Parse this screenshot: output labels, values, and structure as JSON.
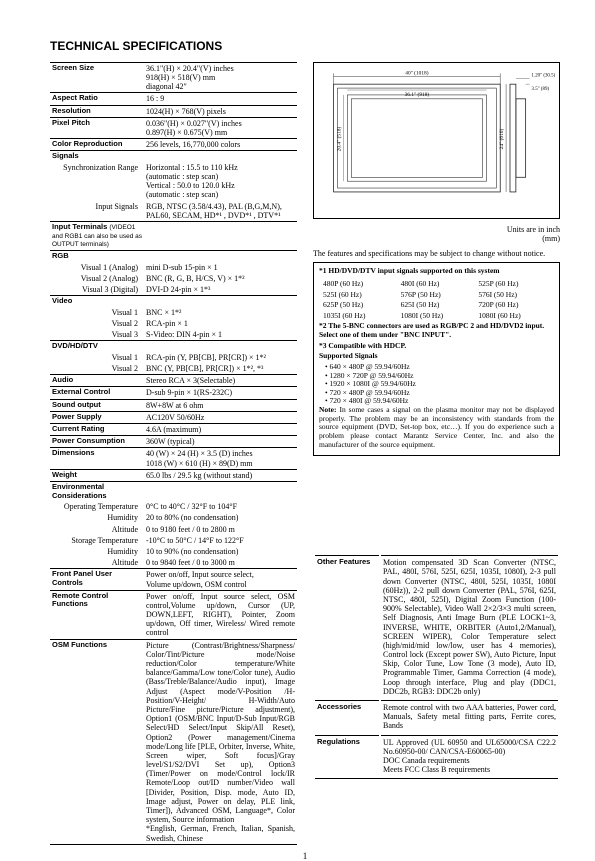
{
  "title": "TECHNICAL SPECIFICATIONS",
  "page_number": "1",
  "diagram_caption": "Units are in inch\n(mm)",
  "diagram": {
    "outer_w_label": "40\" (1018)",
    "outer_h_label": "24\" (610)",
    "screen_w_label": "36.1\" (918)",
    "screen_h_label": "20.4\" (518)",
    "depth_top_label": "1.20\" (30.5)",
    "depth_main_label": "3.5\" (89)"
  },
  "spec_rows": [
    {
      "type": "head",
      "label": "Screen Size",
      "value": "36.1\"(H) × 20.4\"(V) inches\n918(H) × 518(V) mm\ndiagonal 42\""
    },
    {
      "type": "head",
      "label": "Aspect Ratio",
      "value": "16 : 9"
    },
    {
      "type": "head",
      "label": "Resolution",
      "value": "1024(H) × 768(V) pixels"
    },
    {
      "type": "head",
      "label": "Pixel Pitch",
      "value": "0.036\"(H) × 0.027\"(V) inches\n0.897(H) × 0.675(V) mm"
    },
    {
      "type": "head",
      "label": "Color Reproduction",
      "value": "256 levels, 16,770,000 colors"
    },
    {
      "type": "head",
      "label": "Signals",
      "value": ""
    },
    {
      "type": "sub",
      "label": "Synchronization Range",
      "value": "Horizontal : 15.5 to 110 kHz\n(automatic : step scan)\nVertical : 50.0 to 120.0 kHz\n(automatic : step scan)"
    },
    {
      "type": "sub",
      "label": "Input Signals",
      "value": "RGB, NTSC (3.58/4.43), PAL (B,G,M,N),\nPAL60, SECAM, HD*¹ , DVD*¹ , DTV*¹"
    },
    {
      "type": "head",
      "label": "Input Terminals",
      "note": "(VIDEO1 and RGB1 can also be used as OUTPUT terminals)",
      "value": ""
    },
    {
      "type": "subhead",
      "label": "RGB",
      "value": ""
    },
    {
      "type": "sub",
      "label": "Visual 1 (Analog)",
      "value": "mini D-sub 15-pin × 1"
    },
    {
      "type": "sub",
      "label": "Visual 2 (Analog)",
      "value": "BNC (R, G, B, H/CS, V) × 1*²"
    },
    {
      "type": "sub",
      "label": "Visual 3 (Digital)",
      "value": "DVI-D 24-pin × 1*³"
    },
    {
      "type": "subhead",
      "label": "Video",
      "value": ""
    },
    {
      "type": "sub",
      "label": "Visual 1",
      "value": "BNC × 1*²"
    },
    {
      "type": "sub",
      "label": "Visual 2",
      "value": "RCA-pin × 1"
    },
    {
      "type": "sub",
      "label": "Visual 3",
      "value": "S-Video: DIN 4-pin × 1"
    },
    {
      "type": "subhead",
      "label": "DVD/HD/DTV",
      "value": ""
    },
    {
      "type": "sub",
      "label": "Visual 1",
      "value": "RCA-pin (Y, PB[CB], PR[CR]) × 1*²"
    },
    {
      "type": "sub",
      "label": "Visual 2",
      "value": "BNC (Y, PB[CB], PR[CR]) × 1*², *³"
    },
    {
      "type": "subhead",
      "label": "Audio",
      "value": "Stereo RCA × 3(Selectable)"
    },
    {
      "type": "subhead",
      "label": "External Control",
      "value": "D-sub 9-pin × 1(RS-232C)"
    },
    {
      "type": "head",
      "label": "Sound output",
      "value": "8W+8W at 6 ohm"
    },
    {
      "type": "head",
      "label": "Power Supply",
      "value": "AC120V 50/60Hz"
    },
    {
      "type": "head",
      "label": "Current Rating",
      "value": "4.6A (maximum)"
    },
    {
      "type": "head",
      "label": "Power Consumption",
      "value": "360W (typical)"
    },
    {
      "type": "head",
      "label": "Dimensions",
      "value": "40 (W) × 24 (H) × 3.5 (D) inches\n1018 (W) × 610 (H) × 89(D) mm"
    },
    {
      "type": "head",
      "label": "Weight",
      "value": "65.0 lbs / 29.5 kg (without stand)"
    },
    {
      "type": "head",
      "label": "Environmental Considerations",
      "value": ""
    },
    {
      "type": "sub",
      "label": "Operating Temperature",
      "value": "0°C to 40°C / 32°F to 104°F"
    },
    {
      "type": "sub",
      "label": "Humidity",
      "value": "20 to 80% (no condensation)"
    },
    {
      "type": "sub",
      "label": "Altitude",
      "value": "0 to 9180 feet / 0 to 2800 m"
    },
    {
      "type": "sub",
      "label": "Storage   Temperature",
      "value": "-10°C to 50°C / 14°F to 122°F"
    },
    {
      "type": "sub",
      "label": "Humidity",
      "value": "10 to 90% (no condensation)"
    },
    {
      "type": "sub",
      "label": "Altitude",
      "value": "0 to 9840 feet / 0 to 3000 m"
    },
    {
      "type": "head",
      "label": "Front Panel User Controls",
      "value": "Power on/off, Input source select,\nVolume up/down, OSM control"
    },
    {
      "type": "head",
      "label": "Remote Control Functions",
      "value": "Power on/off, Input source select, OSM control,Volume up/down, Cursor (UP, DOWN,LEFT, RIGHT), Pointer, Zoom up/down, Off timer, Wireless/ Wired remote control"
    },
    {
      "type": "head",
      "label": "OSM Functions",
      "value": "Picture (Contrast/Brightness/Sharpness/ Color/Tint/Picture mode/Noise reduction/Color temperature/White balance/Gamma/Low tone/Color tune), Audio (Bass/Treble/Balance/Audio input), Image Adjust (Aspect mode/V-Position /H-Position/V-Height/ H-Width/Auto Picture/Fine picture/Picture adjustment), Option1 (OSM/BNC Input/D-Sub Input/RGB Select/HD Select/Input Skip/All Reset), Option2 (Power management/Cinema mode/Long life [PLE, Orbiter, Inverse, White, Screen wiper, Soft focus]/Gray level/S1/S2/DVI Set up), Option3 (Timer/Power on mode/Control lock/IR Remote/Loop out/ID number/Video wall [Divider, Position, Disp. mode, Auto ID, Image adjust, Power on delay, PLE link, Timer]), Advanced OSM, Language*, Color system, Source information\n*English, German, French, Italian, Spanish, Swedish, Chinese"
    }
  ],
  "notice_text": "The features and specifications may be subject to change without notice.",
  "box": {
    "line1": "*1 HD/DVD/DTV input signals supported on this system",
    "signals": [
      [
        "480P (60 Hz)",
        "480I (60 Hz)",
        "525P (60 Hz)"
      ],
      [
        "525I (60 Hz)",
        "576P (50 Hz)",
        "576I (50 Hz)"
      ],
      [
        "625P (50 Hz)",
        "625I (50 Hz)",
        "720P (60 Hz)"
      ],
      [
        "1035I (60 Hz)",
        "1080I (50 Hz)",
        "1080I (60 Hz)"
      ]
    ],
    "line2": "*2 The 5-BNC connectors are used as RGB/PC 2 and HD/DVD2 input. Select one of them under \"BNC INPUT\".",
    "line3": "*3 Compatible with HDCP.",
    "supported_head": "Supported Signals",
    "supported": [
      "• 640 × 480P @ 59.94/60Hz",
      "• 1280 × 720P @ 59.94/60Hz",
      "• 1920 × 1080I @ 59.94/60Hz",
      "• 720 × 480P @ 59.94/60Hz",
      "• 720 × 480I @ 59.94/60Hz"
    ],
    "note": "Note: In some cases a signal on the plasma monitor may not be displayed properly. The problem may be an inconsistency with standards from the source equipment (DVD, Set-top box, etc…). If you do experience such a problem please contact Marantz Service Center, Inc. and also the manufacturer of the source equipment."
  },
  "features": [
    {
      "label": "Other Features",
      "value": "Motion compensated 3D Scan Converter (NTSC, PAL, 480I, 576I, 525I, 625I, 1035I, 1080I), 2-3 pull down Converter (NTSC, 480I, 525I, 1035I, 1080I (60Hz)), 2-2 pull down Converter (PAL, 576I, 625I, NTSC, 480I, 525I), Digital Zoom Function (100-900% Selectable), Video Wall 2×2/3×3 multi screen, Self Diagnosis, Anti Image Burn (PLE LOCK1~3, INVERSE, WHITE, ORBITER (Auto1,2/Manual), SCREEN WIPER), Color Temperature select (high/mid/mid low/low, user has 4 memories), Control lock (Except power SW), Auto Picture, Input Skip, Color Tune, Low Tone (3 mode), Auto ID, Programmable Timer, Gamma Correction (4 mode), Loop through interface, Plug and play (DDC1, DDC2b, RGB3: DDC2b only)"
    },
    {
      "label": "Accessories",
      "value": "Remote control with two AAA batteries, Power cord, Manuals, Safety metal fitting parts, Ferrite cores, Bands"
    },
    {
      "label": "Regulations",
      "value": "UL Approved (UL 60950 and UL65000/CSA C22.2 No.60950-00/ CAN/CSA-E60065-00)\nDOC Canada requirements\nMeets FCC Class B requirements"
    }
  ]
}
